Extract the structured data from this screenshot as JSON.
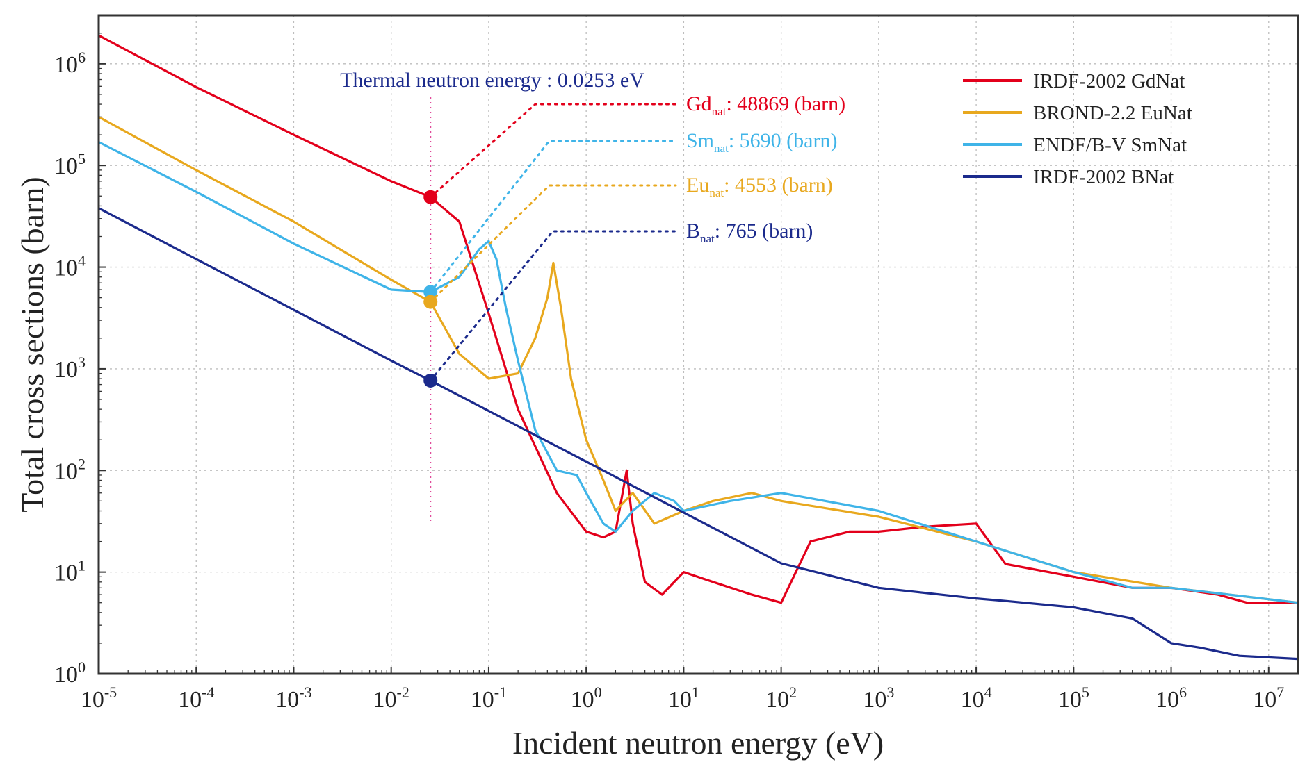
{
  "chart_data": {
    "type": "line",
    "title": "",
    "xlabel": "Incident neutron energy (eV)",
    "ylabel": "Total cross sections (barn)",
    "x_scale": "log",
    "y_scale": "log",
    "xlim": [
      1e-05,
      20000000.0
    ],
    "ylim": [
      1,
      3000000.0
    ],
    "grid": true,
    "legend_position": "top-right",
    "x_ticks": [
      {
        "mantissa": "10",
        "exp": "-5"
      },
      {
        "mantissa": "10",
        "exp": "-4"
      },
      {
        "mantissa": "10",
        "exp": "-3"
      },
      {
        "mantissa": "10",
        "exp": "-2"
      },
      {
        "mantissa": "10",
        "exp": "-1"
      },
      {
        "mantissa": "10",
        "exp": "0"
      },
      {
        "mantissa": "10",
        "exp": "1"
      },
      {
        "mantissa": "10",
        "exp": "2"
      },
      {
        "mantissa": "10",
        "exp": "3"
      },
      {
        "mantissa": "10",
        "exp": "4"
      },
      {
        "mantissa": "10",
        "exp": "5"
      },
      {
        "mantissa": "10",
        "exp": "6"
      },
      {
        "mantissa": "10",
        "exp": "7"
      }
    ],
    "y_ticks": [
      {
        "mantissa": "10",
        "exp": "0"
      },
      {
        "mantissa": "10",
        "exp": "1"
      },
      {
        "mantissa": "10",
        "exp": "2"
      },
      {
        "mantissa": "10",
        "exp": "3"
      },
      {
        "mantissa": "10",
        "exp": "4"
      },
      {
        "mantissa": "10",
        "exp": "5"
      },
      {
        "mantissa": "10",
        "exp": "6"
      }
    ],
    "series": [
      {
        "name": "IRDF-2002 GdNat",
        "color": "#e3001b",
        "x": [
          1e-05,
          0.0001,
          0.001,
          0.01,
          0.0253,
          0.05,
          0.1,
          0.2,
          0.5,
          1.0,
          1.5,
          2.0,
          2.6,
          3.0,
          4.0,
          6.0,
          10,
          20,
          50,
          100,
          200,
          500,
          1000,
          3000,
          10000,
          20000,
          100000,
          400000,
          1000000,
          3000000,
          6000000,
          20000000
        ],
        "y": [
          1900000,
          590000,
          200000,
          70000,
          48869,
          28000,
          3500,
          400,
          60,
          25,
          22,
          25,
          100,
          30,
          8,
          6,
          10,
          8,
          6,
          5,
          20,
          25,
          25,
          28,
          30,
          12,
          9,
          7,
          7,
          6,
          5,
          5
        ]
      },
      {
        "name": "BROND-2.2 EuNat",
        "color": "#e8a81e",
        "x": [
          1e-05,
          0.0001,
          0.001,
          0.01,
          0.0253,
          0.05,
          0.1,
          0.2,
          0.3,
          0.4,
          0.46,
          0.55,
          0.7,
          1.0,
          1.5,
          2.0,
          3.0,
          5.0,
          10,
          20,
          50,
          100,
          1000,
          10000,
          100000,
          1000000,
          20000000
        ],
        "y": [
          300000,
          90000,
          28000,
          7500,
          4553,
          1400,
          800,
          900,
          2000,
          5000,
          11000,
          4000,
          800,
          200,
          80,
          40,
          60,
          30,
          40,
          50,
          60,
          50,
          35,
          20,
          10,
          7,
          5
        ]
      },
      {
        "name": "ENDF/B-V SmNat",
        "color": "#3fb4e8",
        "x": [
          1e-05,
          0.0001,
          0.001,
          0.01,
          0.0253,
          0.05,
          0.08,
          0.1,
          0.12,
          0.15,
          0.2,
          0.3,
          0.5,
          0.8,
          1.0,
          1.5,
          2.0,
          3.0,
          5.0,
          8.0,
          10,
          30,
          100,
          1000,
          10000,
          100000,
          400000,
          1000000,
          20000000
        ],
        "y": [
          170000,
          55000,
          17000,
          6000,
          5690,
          8000,
          15000,
          18000,
          12000,
          4000,
          1200,
          250,
          100,
          90,
          60,
          30,
          25,
          40,
          60,
          50,
          40,
          50,
          60,
          40,
          20,
          10,
          7,
          7,
          5
        ]
      },
      {
        "name": "IRDF-2002 BNat",
        "color": "#1b2a8c",
        "x": [
          1e-05,
          0.0001,
          0.001,
          0.01,
          0.0253,
          0.1,
          1.0,
          10,
          100,
          1000,
          10000,
          20000,
          100000,
          400000,
          1000000,
          2000000,
          5000000,
          20000000
        ],
        "y": [
          38000,
          12000,
          3800,
          1200,
          765,
          385,
          122,
          38.5,
          12.2,
          7,
          5.5,
          5.2,
          4.5,
          3.5,
          2,
          1.8,
          1.5,
          1.4
        ]
      }
    ],
    "annotations": {
      "thermal_label": "Thermal neutron energy : 0.0253 eV",
      "thermal_energy_ev": 0.0253,
      "points": [
        {
          "element": "Gd",
          "sub": "nat",
          "value_text": ": 48869 (barn)",
          "value": 48869,
          "color": "#e3001b"
        },
        {
          "element": "Sm",
          "sub": "nat",
          "value_text": ": 5690 (barn)",
          "value": 5690,
          "color": "#3fb4e8"
        },
        {
          "element": "Eu",
          "sub": "nat",
          "value_text": ": 4553 (barn)",
          "value": 4553,
          "color": "#e8a81e"
        },
        {
          "element": "B",
          "sub": "nat",
          "value_text": ": 765 (barn)",
          "value": 765,
          "color": "#1b2a8c"
        }
      ]
    }
  }
}
